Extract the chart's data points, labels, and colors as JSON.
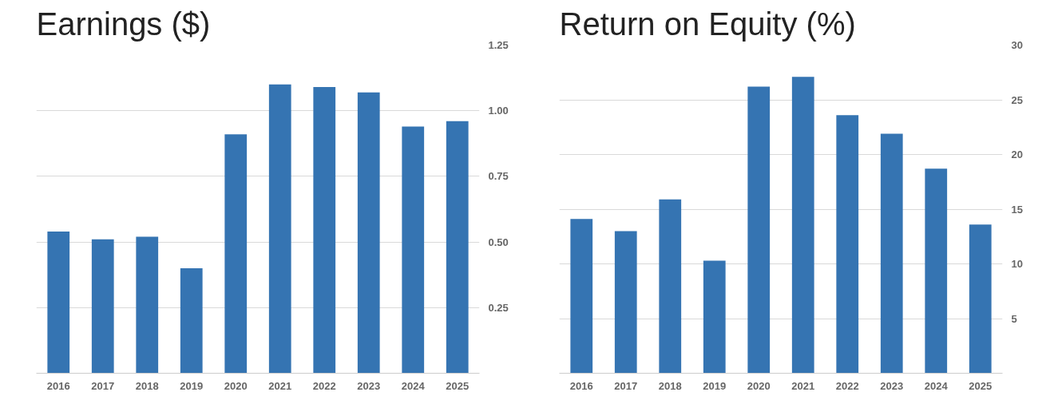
{
  "chart_data": [
    {
      "type": "bar",
      "title": "Earnings ($)",
      "categories": [
        "2016",
        "2017",
        "2018",
        "2019",
        "2020",
        "2021",
        "2022",
        "2023",
        "2024",
        "2025"
      ],
      "series": [
        {
          "color": "#3574b2",
          "values": [
            0.54,
            0.51,
            0.52,
            0.4,
            0.91,
            1.1,
            1.09,
            1.07,
            0.94,
            0.96
          ]
        }
      ],
      "ylim": [
        0,
        1.25
      ],
      "yticks": [
        {
          "value": 0.25,
          "label": "0.25"
        },
        {
          "value": 0.5,
          "label": "0.50"
        },
        {
          "value": 0.75,
          "label": "0.75"
        },
        {
          "value": 1.0,
          "label": "1.00"
        },
        {
          "value": 1.25,
          "label": "1.25"
        }
      ],
      "grid": "y"
    },
    {
      "type": "bar",
      "title": "Return on Equity (%)",
      "categories": [
        "2016",
        "2017",
        "2018",
        "2019",
        "2020",
        "2021",
        "2022",
        "2023",
        "2024",
        "2025"
      ],
      "series": [
        {
          "color": "#3574b2",
          "values": [
            14.1,
            13.0,
            15.9,
            10.3,
            26.2,
            27.1,
            23.6,
            21.9,
            18.7,
            13.6
          ]
        }
      ],
      "ylim": [
        0,
        30
      ],
      "yticks": [
        5,
        10,
        15,
        20,
        25,
        30
      ],
      "grid": "y"
    }
  ]
}
